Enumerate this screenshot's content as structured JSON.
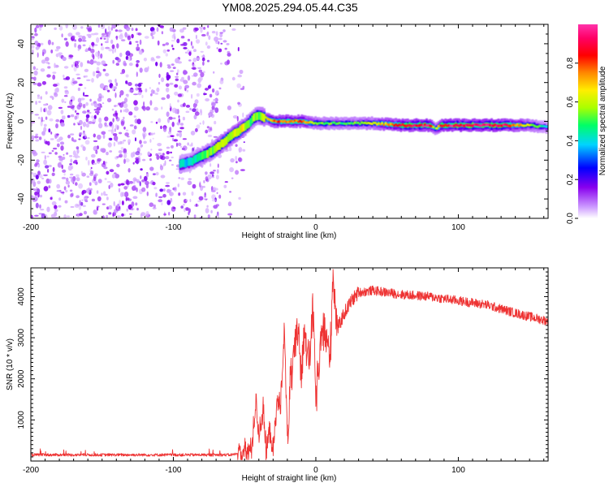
{
  "title": "YM08.2025.294.05.44.C35",
  "chart_data": [
    {
      "type": "heatmap",
      "name": "spectrogram",
      "xlabel": "Height of straight line (km)",
      "ylabel": "Frequency (Hz)",
      "xlim": [
        -200,
        163
      ],
      "ylim": [
        -50,
        50
      ],
      "xticks": [
        -200,
        -100,
        0,
        100
      ],
      "xtick_labels": [
        "-200",
        "-100",
        "0",
        "100"
      ],
      "yticks": [
        -40,
        -20,
        0,
        20,
        40
      ],
      "ytick_labels": [
        "-40",
        "-20",
        "0",
        "20",
        "40"
      ],
      "colorbar": {
        "label": "Normalized spectral amplitude",
        "range": [
          0,
          1
        ],
        "ticks": [
          0,
          0.2,
          0.4,
          0.6,
          0.8
        ],
        "tick_labels": [
          "0.0",
          "0.2",
          "0.4",
          "0.6",
          "0.8"
        ],
        "colors": [
          "#ffffff",
          "#cc99ff",
          "#8800ee",
          "#0000ff",
          "#00d4ff",
          "#00ff66",
          "#aaff00",
          "#ffee00",
          "#ff8800",
          "#ff0000",
          "#ff0066",
          "#ff33aa"
        ]
      },
      "noise_region": {
        "x": [
          -200,
          -60
        ],
        "amplitude": "low"
      },
      "ridge": {
        "x": [
          -95,
          -88,
          -80,
          -72,
          -65,
          -58,
          -52,
          -47,
          -43,
          -40,
          -36,
          -30,
          -20,
          -10,
          0,
          20,
          40,
          60,
          80,
          84,
          88,
          95,
          110,
          130,
          150,
          163
        ],
        "y": [
          -22,
          -21,
          -18,
          -15,
          -11,
          -7,
          -4,
          -1,
          2,
          3,
          2,
          0,
          0,
          0,
          -1,
          -1,
          -1,
          -2,
          -2,
          -4,
          -2,
          -2,
          -2,
          -2,
          -2,
          -3
        ],
        "amplitude": [
          0.4,
          0.4,
          0.5,
          0.55,
          0.6,
          0.6,
          0.65,
          0.5,
          0.55,
          0.5,
          0.6,
          0.8,
          0.8,
          0.8,
          0.55,
          0.5,
          0.6,
          0.9,
          0.95,
          0.5,
          0.9,
          0.95,
          0.95,
          0.95,
          0.6,
          0.4
        ]
      }
    },
    {
      "type": "line",
      "name": "snr",
      "xlabel": "Height of straight line (km)",
      "ylabel": "SNR (10 * v/v)",
      "xlim": [
        -200,
        163
      ],
      "ylim": [
        0,
        4700
      ],
      "xticks": [
        -200,
        -100,
        0,
        100
      ],
      "xtick_labels": [
        "-200",
        "-100",
        "0",
        "100"
      ],
      "yticks": [
        1000,
        2000,
        3000,
        4000
      ],
      "ytick_labels": [
        "1000",
        "2000",
        "3000",
        "4000"
      ],
      "color": "#ee3333",
      "series": [
        {
          "name": "SNR",
          "x": [
            -200,
            -100,
            -60,
            -50,
            -45,
            -42,
            -40,
            -37,
            -35,
            -32,
            -30,
            -27,
            -25,
            -22,
            -20,
            -18,
            -15,
            -12,
            -10,
            -8,
            -5,
            -2,
            0,
            5,
            10,
            12,
            15,
            20,
            25,
            30,
            40,
            50,
            60,
            80,
            100,
            120,
            140,
            163
          ],
          "values": [
            150,
            150,
            150,
            200,
            300,
            1500,
            600,
            1300,
            200,
            800,
            200,
            1500,
            1300,
            3200,
            500,
            1800,
            2600,
            3300,
            1900,
            3400,
            2300,
            3700,
            1500,
            3300,
            2500,
            4600,
            3200,
            3600,
            3900,
            4100,
            4150,
            4100,
            4050,
            4000,
            3900,
            3800,
            3600,
            3400
          ]
        }
      ]
    }
  ]
}
